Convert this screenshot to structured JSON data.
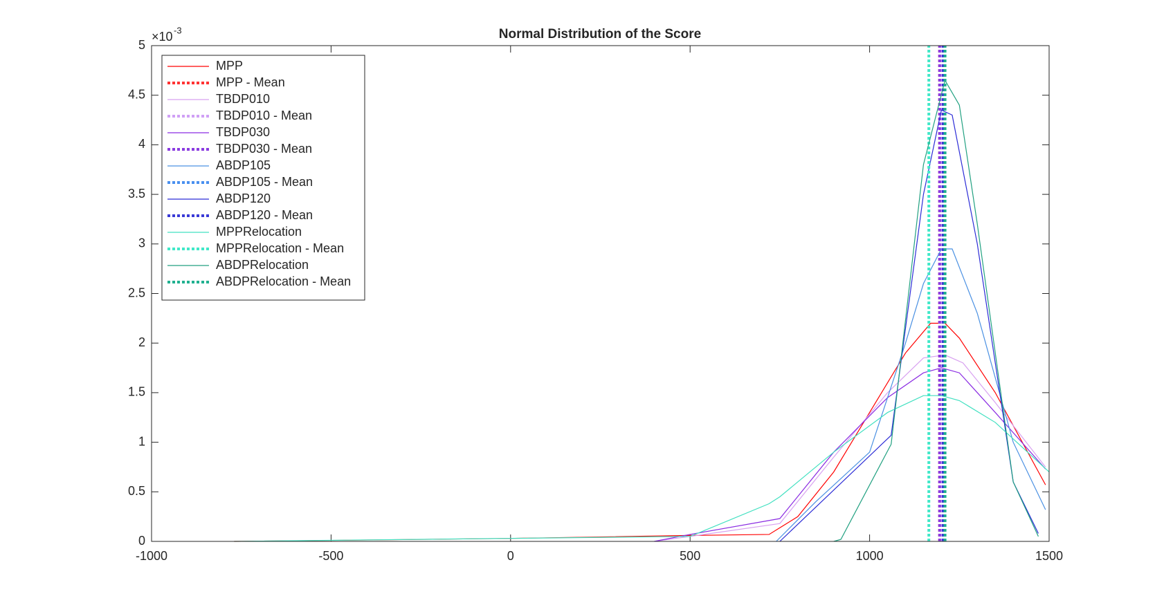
{
  "chart_data": {
    "type": "line",
    "title": "Normal Distribution of the Score",
    "y_multiplier": {
      "base": "×10",
      "exponent": "-3"
    },
    "xlim": [
      -1000,
      1500
    ],
    "xticks": [
      -1000,
      -500,
      0,
      500,
      1000,
      1500
    ],
    "ylim": [
      0,
      5
    ],
    "yticks": [
      0,
      0.5,
      1,
      1.5,
      2,
      2.5,
      3,
      3.5,
      4,
      4.5,
      5
    ],
    "grid": false,
    "box": true,
    "legend": "top-left",
    "series": [
      {
        "name": "MPP",
        "color": "#ff0000",
        "style": "solid",
        "x": [
          -770,
          -500,
          0,
          500,
          720,
          800,
          900,
          1050,
          1100,
          1170,
          1210,
          1250,
          1350,
          1490
        ],
        "values": [
          0,
          0.01,
          0.03,
          0.06,
          0.07,
          0.25,
          0.7,
          1.6,
          1.9,
          2.2,
          2.2,
          2.05,
          1.5,
          0.57
        ]
      },
      {
        "name": "MPP - Mean",
        "color": "#ff3333",
        "style": "dotted",
        "x": [
          1195,
          1195
        ],
        "values": [
          0,
          5
        ]
      },
      {
        "name": "TBDP010",
        "color": "#d8a0f0",
        "style": "solid",
        "x": [
          400,
          500,
          750,
          900,
          1050,
          1150,
          1210,
          1260,
          1350,
          1490
        ],
        "values": [
          0,
          0.05,
          0.18,
          0.85,
          1.5,
          1.85,
          1.88,
          1.8,
          1.4,
          0.75
        ]
      },
      {
        "name": "TBDP010 - Mean",
        "color": "#d0a0f5",
        "style": "dotted",
        "x": [
          1200,
          1200
        ],
        "values": [
          0,
          5
        ]
      },
      {
        "name": "TBDP030",
        "color": "#8a2be2",
        "style": "solid",
        "x": [
          400,
          500,
          750,
          900,
          1050,
          1150,
          1200,
          1250,
          1350,
          1490
        ],
        "values": [
          0,
          0.07,
          0.23,
          0.9,
          1.45,
          1.7,
          1.75,
          1.7,
          1.3,
          0.73
        ]
      },
      {
        "name": "TBDP030 - Mean",
        "color": "#8a3be0",
        "style": "dotted",
        "x": [
          1195,
          1195
        ],
        "values": [
          0,
          5
        ]
      },
      {
        "name": "ABDP105",
        "color": "#4a90e2",
        "style": "solid",
        "x": [
          740,
          850,
          1000,
          1100,
          1150,
          1200,
          1230,
          1300,
          1400,
          1490
        ],
        "values": [
          0,
          0.4,
          0.9,
          2.0,
          2.6,
          2.95,
          2.95,
          2.3,
          1.0,
          0.32
        ]
      },
      {
        "name": "ABDP105 - Mean",
        "color": "#4a90f0",
        "style": "dotted",
        "x": [
          1210,
          1210
        ],
        "values": [
          0,
          5
        ]
      },
      {
        "name": "ABDP120",
        "color": "#2a2ad6",
        "style": "solid",
        "x": [
          750,
          1060,
          1150,
          1200,
          1230,
          1300,
          1400,
          1470
        ],
        "values": [
          0,
          1.07,
          3.5,
          4.35,
          4.3,
          3.0,
          0.6,
          0.08
        ]
      },
      {
        "name": "ABDP120 - Mean",
        "color": "#3a3ad6",
        "style": "dotted",
        "x": [
          1205,
          1205
        ],
        "values": [
          0,
          5
        ]
      },
      {
        "name": "MPPRelocation",
        "color": "#40e0c0",
        "style": "solid",
        "x": [
          -770,
          500,
          720,
          750,
          900,
          1050,
          1150,
          1200,
          1250,
          1350,
          1500
        ],
        "values": [
          0,
          0.05,
          0.38,
          0.45,
          0.9,
          1.3,
          1.47,
          1.47,
          1.42,
          1.2,
          0.7
        ]
      },
      {
        "name": "MPPRelocation - Mean",
        "color": "#40e8c8",
        "style": "dotted",
        "x": [
          1165,
          1165
        ],
        "values": [
          0,
          5
        ]
      },
      {
        "name": "ABDPRelocation",
        "color": "#20a080",
        "style": "solid",
        "x": [
          900,
          920,
          1060,
          1150,
          1210,
          1250,
          1300,
          1400,
          1470
        ],
        "values": [
          0,
          0.02,
          0.98,
          3.8,
          4.65,
          4.4,
          3.2,
          0.6,
          0.05
        ]
      },
      {
        "name": "ABDPRelocation - Mean",
        "color": "#20b090",
        "style": "dotted",
        "x": [
          1210,
          1210
        ],
        "values": [
          0,
          5
        ]
      }
    ]
  }
}
